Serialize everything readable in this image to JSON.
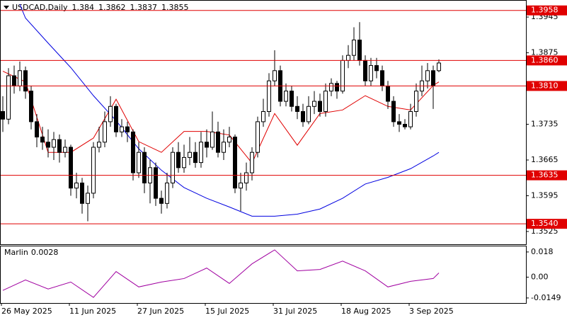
{
  "chart_data": [
    {
      "type": "candlestick",
      "symbol": "USDCAD,Daily",
      "categories": [
        "26 May 2025",
        null,
        null,
        null,
        null,
        null,
        null,
        null,
        null,
        null,
        null,
        null,
        "11 Jun 2025",
        null,
        null,
        null,
        null,
        null,
        null,
        null,
        null,
        null,
        null,
        null,
        "27 Jun 2025",
        null,
        null,
        null,
        null,
        null,
        null,
        null,
        null,
        null,
        null,
        null,
        "15 Jul 2025",
        null,
        null,
        null,
        null,
        null,
        null,
        null,
        null,
        null,
        null,
        null,
        "31 Jul 2025",
        null,
        null,
        null,
        null,
        null,
        null,
        null,
        null,
        null,
        null,
        null,
        "18 Aug 2025",
        null,
        null,
        null,
        null,
        null,
        null,
        null,
        null,
        null,
        null,
        null,
        "3 Sep 2025",
        null,
        null,
        null,
        null,
        null
      ],
      "open": [
        1.376,
        1.3745,
        1.383,
        1.381,
        1.384,
        1.38,
        1.374,
        1.371,
        1.37,
        1.369,
        1.3705,
        1.368,
        1.369,
        1.361,
        1.362,
        1.358,
        1.36,
        1.369,
        1.37,
        1.374,
        1.377,
        1.372,
        1.373,
        1.372,
        1.364,
        1.368,
        1.362,
        1.365,
        1.359,
        1.358,
        1.362,
        1.368,
        1.365,
        1.367,
        1.368,
        1.366,
        1.37,
        1.369,
        1.372,
        1.368,
        1.37,
        1.371,
        1.361,
        1.362,
        1.364,
        1.368,
        1.374,
        1.376,
        1.382,
        1.384,
        1.378,
        1.38,
        1.377,
        1.376,
        1.374,
        1.377,
        1.378,
        1.376,
        1.38,
        1.3815,
        1.38,
        1.386,
        1.387,
        1.39,
        1.386,
        1.382,
        1.385,
        1.384,
        1.381,
        1.378,
        1.374,
        1.3735,
        1.373,
        1.376,
        1.38,
        1.382,
        1.384,
        1.384
      ],
      "high": [
        1.379,
        1.3845,
        1.385,
        1.3858,
        1.3848,
        1.381,
        1.3755,
        1.373,
        1.3725,
        1.372,
        1.3715,
        1.3705,
        1.3695,
        1.364,
        1.363,
        1.3615,
        1.37,
        1.373,
        1.376,
        1.379,
        1.3775,
        1.3745,
        1.374,
        1.3725,
        1.37,
        1.369,
        1.3665,
        1.366,
        1.3605,
        1.364,
        1.369,
        1.37,
        1.3695,
        1.371,
        1.37,
        1.372,
        1.3725,
        1.376,
        1.374,
        1.3725,
        1.373,
        1.3715,
        1.364,
        1.366,
        1.369,
        1.375,
        1.3785,
        1.3835,
        1.388,
        1.385,
        1.3815,
        1.381,
        1.379,
        1.3775,
        1.379,
        1.38,
        1.3795,
        1.3815,
        1.3825,
        1.382,
        1.387,
        1.389,
        1.3925,
        1.3935,
        1.387,
        1.3865,
        1.3865,
        1.385,
        1.382,
        1.379,
        1.3755,
        1.3745,
        1.3775,
        1.3815,
        1.385,
        1.3855,
        1.385,
        1.3862
      ],
      "low": [
        1.372,
        1.3735,
        1.3795,
        1.38,
        1.3785,
        1.3725,
        1.369,
        1.3685,
        1.367,
        1.3665,
        1.366,
        1.367,
        1.3595,
        1.359,
        1.356,
        1.3545,
        1.359,
        1.368,
        1.369,
        1.373,
        1.371,
        1.371,
        1.37,
        1.3625,
        1.363,
        1.36,
        1.358,
        1.3575,
        1.356,
        1.357,
        1.361,
        1.364,
        1.364,
        1.3655,
        1.365,
        1.365,
        1.367,
        1.3685,
        1.367,
        1.3665,
        1.369,
        1.36,
        1.3565,
        1.3605,
        1.3625,
        1.367,
        1.373,
        1.375,
        1.381,
        1.377,
        1.377,
        1.376,
        1.3745,
        1.373,
        1.3735,
        1.3755,
        1.375,
        1.375,
        1.379,
        1.3785,
        1.3795,
        1.3845,
        1.386,
        1.385,
        1.381,
        1.381,
        1.3825,
        1.38,
        1.3765,
        1.373,
        1.372,
        1.3725,
        1.3725,
        1.375,
        1.379,
        1.3805,
        1.3765,
        1.3837
      ],
      "close": [
        1.3745,
        1.383,
        1.381,
        1.384,
        1.38,
        1.374,
        1.371,
        1.37,
        1.369,
        1.3705,
        1.368,
        1.369,
        1.361,
        1.362,
        1.358,
        1.36,
        1.369,
        1.37,
        1.374,
        1.377,
        1.372,
        1.373,
        1.372,
        1.364,
        1.368,
        1.362,
        1.365,
        1.359,
        1.358,
        1.362,
        1.368,
        1.365,
        1.367,
        1.368,
        1.366,
        1.37,
        1.369,
        1.372,
        1.368,
        1.37,
        1.371,
        1.361,
        1.362,
        1.364,
        1.368,
        1.374,
        1.376,
        1.382,
        1.384,
        1.378,
        1.38,
        1.377,
        1.376,
        1.374,
        1.377,
        1.378,
        1.376,
        1.38,
        1.3815,
        1.38,
        1.386,
        1.387,
        1.39,
        1.386,
        1.382,
        1.385,
        1.384,
        1.381,
        1.378,
        1.374,
        1.3735,
        1.373,
        1.376,
        1.38,
        1.382,
        1.384,
        1.381,
        1.3855
      ],
      "lines": [
        {
          "color": "#e00000",
          "x": [
            0,
            4,
            8,
            12,
            16,
            20,
            24,
            28,
            32,
            36,
            40,
            44,
            48,
            52,
            56,
            60,
            64,
            68,
            72,
            76,
            77
          ],
          "values": [
            1.3839,
            1.3818,
            1.368,
            1.368,
            1.3708,
            1.3784,
            1.3701,
            1.368,
            1.3721,
            1.3721,
            1.3714,
            1.3659,
            1.3756,
            1.3694,
            1.3756,
            1.3763,
            1.3791,
            1.377,
            1.3763,
            1.3811,
            1.3818
          ]
        },
        {
          "color": "#0000e0",
          "x": [
            3,
            4,
            8,
            12,
            16,
            20,
            24,
            28,
            32,
            36,
            40,
            44,
            48,
            52,
            56,
            60,
            64,
            68,
            72,
            76,
            77
          ],
          "values": [
            1.397,
            1.3943,
            1.3894,
            1.3846,
            1.3791,
            1.3742,
            1.3687,
            1.3645,
            1.3611,
            1.359,
            1.3573,
            1.3555,
            1.3555,
            1.3559,
            1.3569,
            1.359,
            1.3618,
            1.3631,
            1.3648,
            1.3673,
            1.368
          ]
        }
      ],
      "levels": [
        1.3958,
        {
          "value": 1.386,
          "label": "1.3860"
        },
        {
          "value": 1.381,
          "label": "1.3810"
        },
        1.3635,
        {
          "value": 1.354,
          "label": "1.3540"
        }
      ],
      "level_color": "#e00000",
      "ylim": [
        1.35,
        1.3977
      ],
      "yticks": [
        1.3945,
        1.3875,
        1.3735,
        1.3665,
        1.3595,
        1.3525
      ]
    },
    {
      "type": "line",
      "name": "Marlin",
      "current": 0.0028,
      "color": "#a000a0",
      "x": [
        0,
        4,
        8,
        12,
        16,
        20,
        24,
        28,
        32,
        36,
        40,
        44,
        48,
        52,
        56,
        60,
        64,
        68,
        72,
        76,
        77
      ],
      "values": [
        -0.0095,
        -0.002,
        -0.0085,
        -0.0035,
        -0.0145,
        0.004,
        -0.007,
        -0.0035,
        -0.001,
        0.0065,
        -0.0045,
        0.0095,
        0.0195,
        0.0045,
        0.0055,
        0.0115,
        0.0045,
        -0.007,
        -0.003,
        -0.001,
        0.003
      ],
      "ylim": [
        -0.0185,
        0.022
      ],
      "yticks": [
        0.018,
        {
          "value": 0,
          "label": "0.00"
        },
        -0.0149
      ]
    }
  ]
}
